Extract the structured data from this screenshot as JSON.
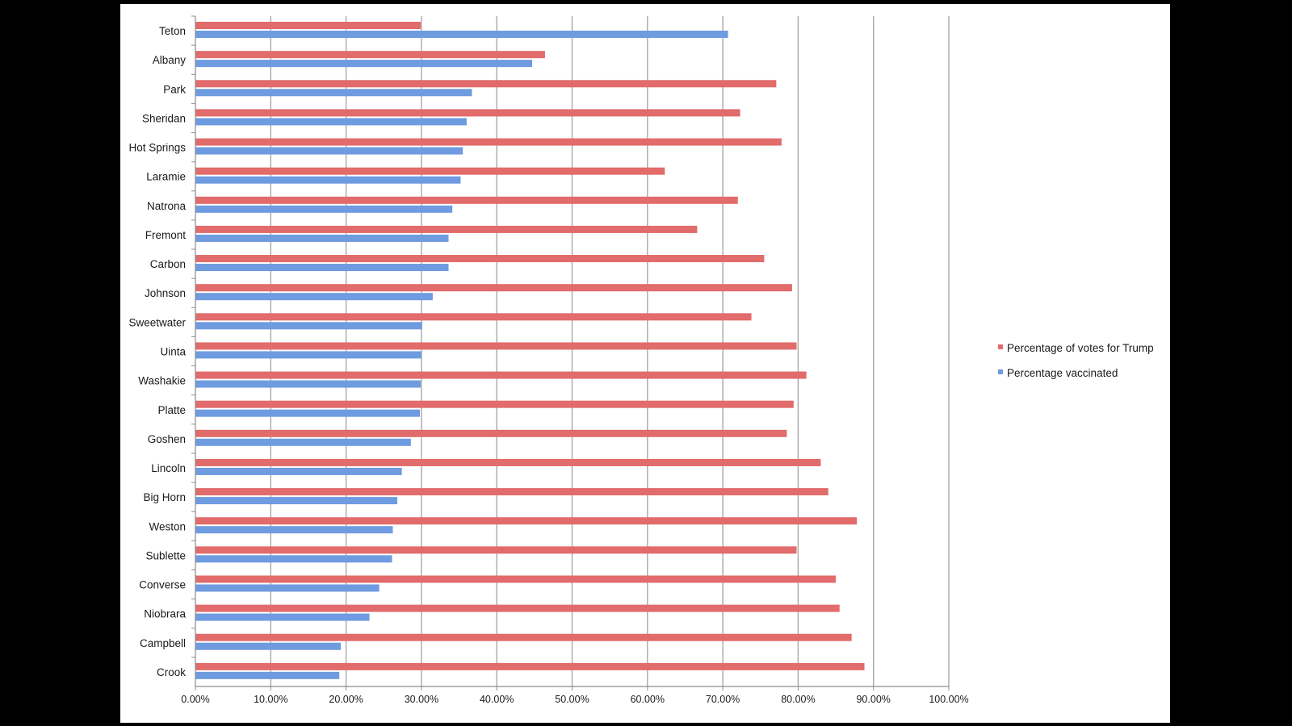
{
  "chart_data": {
    "type": "bar",
    "orientation": "horizontal",
    "title": "",
    "xlabel": "",
    "ylabel": "",
    "xlim": [
      0,
      100
    ],
    "grid": true,
    "legend_position": "right",
    "categories": [
      "Teton",
      "Albany",
      "Park",
      "Sheridan",
      "Hot Springs",
      "Laramie",
      "Natrona",
      "Fremont",
      "Carbon",
      "Johnson",
      "Sweetwater",
      "Uinta",
      "Washakie",
      "Platte",
      "Goshen",
      "Lincoln",
      "Big Horn",
      "Weston",
      "Sublette",
      "Converse",
      "Niobrara",
      "Campbell",
      "Crook"
    ],
    "tick_labels": [
      "0.00%",
      "10.00%",
      "20.00%",
      "30.00%",
      "40.00%",
      "50.00%",
      "60.00%",
      "70.00%",
      "80.00%",
      "90.00%",
      "100.00%"
    ],
    "tick_values": [
      0,
      10,
      20,
      30,
      40,
      50,
      60,
      70,
      80,
      90,
      100
    ],
    "series": [
      {
        "name": "Percentage of votes for Trump",
        "color": "#e26b6b",
        "values": [
          29.9,
          46.4,
          77.1,
          72.3,
          77.8,
          62.3,
          72.0,
          66.6,
          75.5,
          79.2,
          73.8,
          79.8,
          81.1,
          79.4,
          78.5,
          83.0,
          84.0,
          87.8,
          79.8,
          85.0,
          85.5,
          87.1,
          88.8
        ]
      },
      {
        "name": "Percentage vaccinated",
        "color": "#6f9be0",
        "values": [
          70.7,
          44.7,
          36.7,
          36.0,
          35.5,
          35.2,
          34.1,
          33.6,
          33.6,
          31.5,
          30.1,
          30.0,
          29.9,
          29.8,
          28.6,
          27.4,
          26.8,
          26.2,
          26.1,
          24.4,
          23.1,
          19.3,
          19.1
        ]
      }
    ]
  }
}
